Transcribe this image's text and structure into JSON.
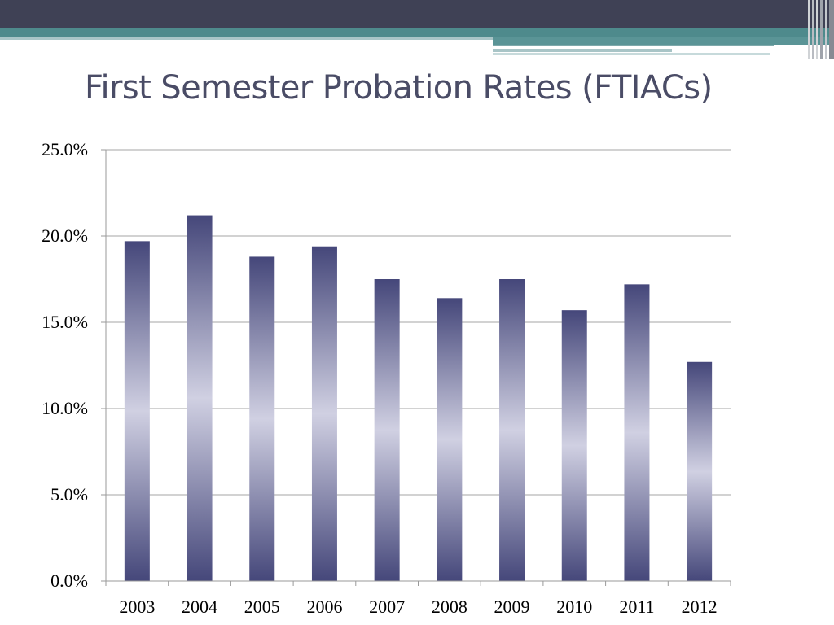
{
  "slide": {
    "title": "First Semester Probation Rates (FTIACs)"
  },
  "theme": {
    "header_dark": "#3f4155",
    "header_teal": "#4e8a8c",
    "header_light": "#a9c5c7",
    "bar_dark": "#45477a",
    "bar_light": "#d0d0e2",
    "gridline": "#a6a6a6",
    "axis": "#9a9a9a"
  },
  "chart_data": {
    "type": "bar",
    "categories": [
      "2003",
      "2004",
      "2005",
      "2006",
      "2007",
      "2008",
      "2009",
      "2010",
      "2011",
      "2012"
    ],
    "values": [
      19.7,
      21.2,
      18.8,
      19.4,
      17.5,
      16.4,
      17.5,
      15.7,
      17.2,
      12.7
    ],
    "ylim": [
      0,
      25
    ],
    "yticks": [
      0,
      5,
      10,
      15,
      20,
      25
    ],
    "ytick_labels": [
      "0.0%",
      "5.0%",
      "10.0%",
      "15.0%",
      "20.0%",
      "25.0%"
    ],
    "title": "",
    "xlabel": "",
    "ylabel": "",
    "grid": true,
    "legend": "none"
  }
}
